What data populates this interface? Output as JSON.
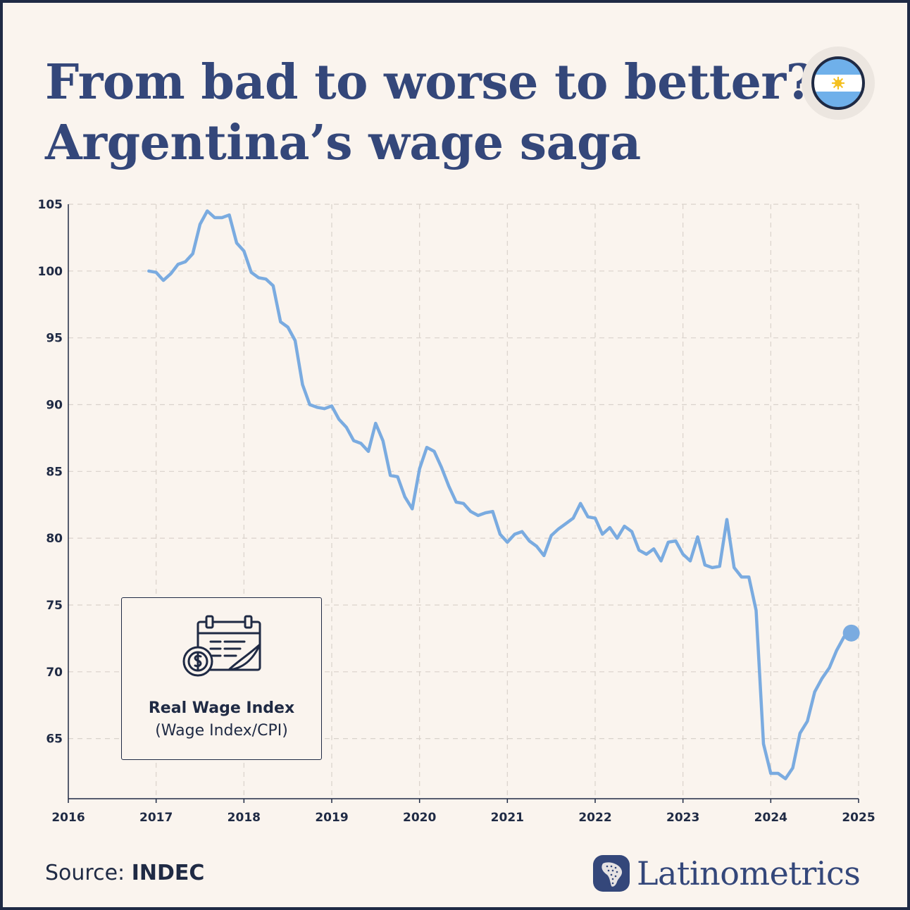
{
  "title_lines": [
    "From bad to worse to better?",
    "Argentina’s wage saga"
  ],
  "legend": {
    "title": "Real Wage Index",
    "subtitle": "(Wage Index/CPI)",
    "icon": "calendar-money-icon"
  },
  "source": {
    "label": "Source:",
    "name": "INDEC"
  },
  "brand": {
    "name": "Latinometrics",
    "icon": "latam-map-icon"
  },
  "flag": {
    "icon": "argentina-flag-icon"
  },
  "colors": {
    "line": "#7aabe0",
    "title": "#34477a",
    "text": "#1f2a44",
    "background": "#faf4ee",
    "grid": "#d9d2cb"
  },
  "chart_data": {
    "type": "line",
    "title": "From bad to worse to better? Argentina’s wage saga",
    "xlabel": "",
    "ylabel": "",
    "xlim": [
      2016,
      2025
    ],
    "ylim": [
      60.5,
      105
    ],
    "x_ticks": [
      2016,
      2017,
      2018,
      2019,
      2020,
      2021,
      2022,
      2023,
      2024,
      2025
    ],
    "y_ticks": [
      65,
      70,
      75,
      80,
      85,
      90,
      95,
      100,
      105
    ],
    "grid": true,
    "end_marker": true,
    "series": [
      {
        "name": "Real Wage Index (Wage Index/CPI)",
        "x": [
          2016.917,
          2017.0,
          2017.083,
          2017.167,
          2017.25,
          2017.333,
          2017.417,
          2017.5,
          2017.583,
          2017.667,
          2017.75,
          2017.833,
          2017.917,
          2018.0,
          2018.083,
          2018.167,
          2018.25,
          2018.333,
          2018.417,
          2018.5,
          2018.583,
          2018.667,
          2018.75,
          2018.833,
          2018.917,
          2019.0,
          2019.083,
          2019.167,
          2019.25,
          2019.333,
          2019.417,
          2019.5,
          2019.583,
          2019.667,
          2019.75,
          2019.833,
          2019.917,
          2020.0,
          2020.083,
          2020.167,
          2020.25,
          2020.333,
          2020.417,
          2020.5,
          2020.583,
          2020.667,
          2020.75,
          2020.833,
          2020.917,
          2021.0,
          2021.083,
          2021.167,
          2021.25,
          2021.333,
          2021.417,
          2021.5,
          2021.583,
          2021.667,
          2021.75,
          2021.833,
          2021.917,
          2022.0,
          2022.083,
          2022.167,
          2022.25,
          2022.333,
          2022.417,
          2022.5,
          2022.583,
          2022.667,
          2022.75,
          2022.833,
          2022.917,
          2023.0,
          2023.083,
          2023.167,
          2023.25,
          2023.333,
          2023.417,
          2023.5,
          2023.583,
          2023.667,
          2023.75,
          2023.833,
          2023.917,
          2024.0,
          2024.083,
          2024.167,
          2024.25,
          2024.333,
          2024.417,
          2024.5,
          2024.583,
          2024.667,
          2024.75,
          2024.833,
          2024.917
        ],
        "values": [
          100.0,
          99.9,
          99.3,
          99.8,
          100.5,
          100.7,
          101.3,
          103.5,
          104.5,
          104.0,
          104.0,
          104.2,
          102.1,
          101.5,
          99.9,
          99.5,
          99.4,
          98.9,
          96.2,
          95.8,
          94.8,
          91.5,
          90.0,
          89.8,
          89.7,
          89.9,
          88.9,
          88.3,
          87.3,
          87.1,
          86.5,
          88.6,
          87.3,
          84.7,
          84.6,
          83.1,
          82.2,
          85.2,
          86.8,
          86.5,
          85.3,
          83.9,
          82.7,
          82.6,
          82.0,
          81.7,
          81.9,
          82.0,
          80.3,
          79.7,
          80.3,
          80.5,
          79.8,
          79.4,
          78.7,
          80.2,
          80.7,
          81.1,
          81.5,
          82.6,
          81.6,
          81.5,
          80.3,
          80.8,
          80.0,
          80.9,
          80.5,
          79.1,
          78.8,
          79.2,
          78.3,
          79.7,
          79.8,
          78.8,
          78.3,
          80.1,
          78.0,
          77.8,
          77.9,
          81.4,
          77.8,
          77.1,
          77.1,
          74.6,
          64.6,
          62.4,
          62.4,
          62.0,
          62.8,
          65.4,
          66.3,
          68.5,
          69.5,
          70.3,
          71.6,
          72.6,
          72.9
        ]
      }
    ]
  }
}
